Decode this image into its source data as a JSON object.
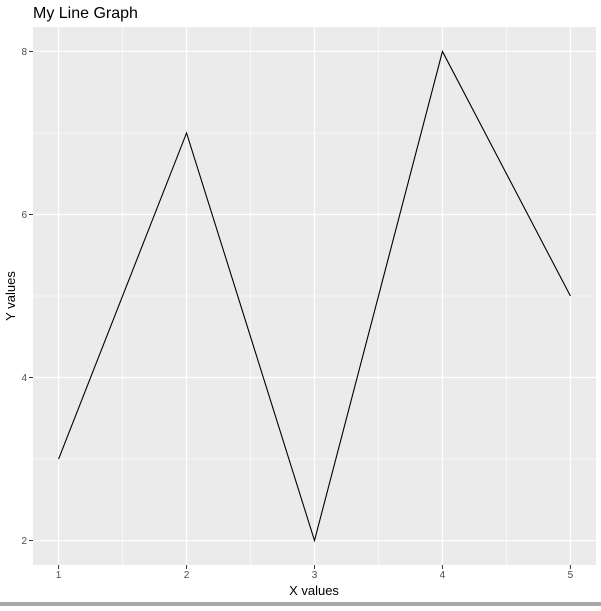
{
  "chart_data": {
    "type": "line",
    "title": "My Line Graph",
    "xlabel": "X values",
    "ylabel": "Y values",
    "x": [
      1,
      2,
      3,
      4,
      5
    ],
    "series": [
      {
        "values": [
          3,
          7,
          2,
          8,
          5
        ]
      }
    ],
    "xlim": [
      0.8,
      5.2
    ],
    "ylim": [
      1.7,
      8.3
    ],
    "x_ticks": [
      1,
      2,
      3,
      4,
      5
    ],
    "y_ticks": [
      2,
      4,
      6,
      8
    ],
    "grid": true,
    "colors": {
      "panel_background": "#ebebeb",
      "grid_line": "#ffffff",
      "line": "#000000",
      "text": "#000000",
      "tick_text": "#4d4d4d",
      "tick_mark": "#333333"
    }
  }
}
